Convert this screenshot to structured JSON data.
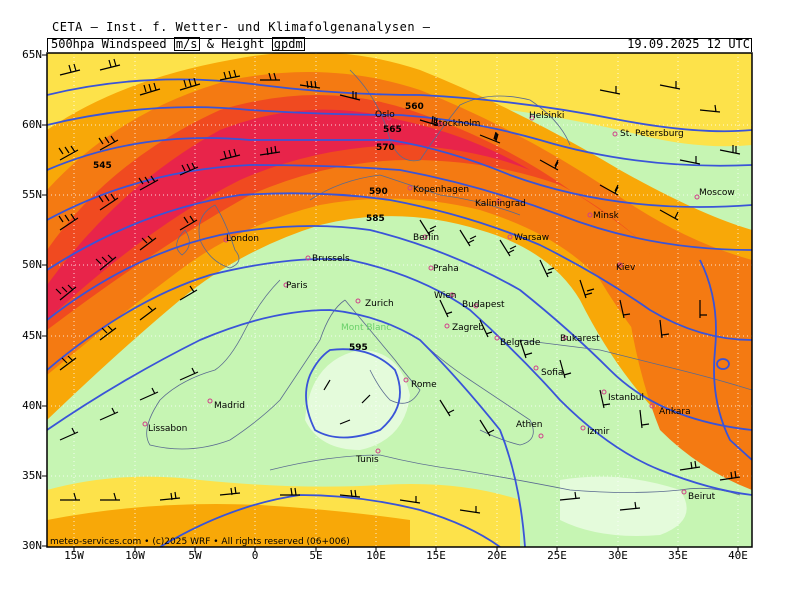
{
  "header": {
    "title": "CETA — Inst. f. Wetter- und Klimafolgenanalysen —",
    "field_label_parts": [
      "500hpa Windspeed",
      "m/s",
      "& Height",
      "gpdm"
    ],
    "datetime": "19.09.2025 12 UTC"
  },
  "map": {
    "lat_labels": [
      "65N",
      "60N",
      "55N",
      "50N",
      "45N",
      "40N",
      "35N",
      "30N"
    ],
    "lon_labels": [
      "15W",
      "10W",
      "5W",
      "0",
      "5E",
      "10E",
      "15E",
      "20E",
      "25E",
      "30E",
      "35E",
      "40E"
    ],
    "height_labels": [
      "560",
      "565",
      "570",
      "545",
      "590",
      "585",
      "595"
    ],
    "cities": [
      {
        "name": "Oslo",
        "green": false
      },
      {
        "name": "Stockholm",
        "green": false
      },
      {
        "name": "Helsinki",
        "green": false
      },
      {
        "name": "St. Petersburg",
        "green": false
      },
      {
        "name": "Kopenhagen",
        "green": false
      },
      {
        "name": "Kaliningrad",
        "green": false
      },
      {
        "name": "Moscow",
        "green": false
      },
      {
        "name": "Minsk",
        "green": false
      },
      {
        "name": "London",
        "green": false
      },
      {
        "name": "Berlin",
        "green": false
      },
      {
        "name": "Warsaw",
        "green": false
      },
      {
        "name": "Brussels",
        "green": false
      },
      {
        "name": "Praha",
        "green": false
      },
      {
        "name": "Kiev",
        "green": false
      },
      {
        "name": "Paris",
        "green": false
      },
      {
        "name": "Wien",
        "green": false
      },
      {
        "name": "Budapest",
        "green": false
      },
      {
        "name": "Zurich",
        "green": false
      },
      {
        "name": "Mont Blanc",
        "green": true
      },
      {
        "name": "Zagreb",
        "green": false
      },
      {
        "name": "Belgrade",
        "green": false
      },
      {
        "name": "Bukarest",
        "green": false
      },
      {
        "name": "Rome",
        "green": false
      },
      {
        "name": "Sofia",
        "green": false
      },
      {
        "name": "Istanbul",
        "green": false
      },
      {
        "name": "Madrid",
        "green": false
      },
      {
        "name": "Ankara",
        "green": false
      },
      {
        "name": "Lissabon",
        "green": false
      },
      {
        "name": "Athen",
        "green": false
      },
      {
        "name": "Izmir",
        "green": false
      },
      {
        "name": "Tunis",
        "green": false
      },
      {
        "name": "Beirut",
        "green": false
      }
    ]
  },
  "footer": "meteo-services.com • (c)2025 WRF • All rights reserved (06+006)",
  "colors": {
    "jet_core": "#e8244a",
    "jet_strong": "#f04a20",
    "wind_orange": "#f47a12",
    "wind_gold": "#f8a808",
    "wind_yellow": "#fde24a",
    "calm_green": "#c6f5b3",
    "calm_pale": "#e4fbdb",
    "contour_blue": "#3a54d8"
  }
}
